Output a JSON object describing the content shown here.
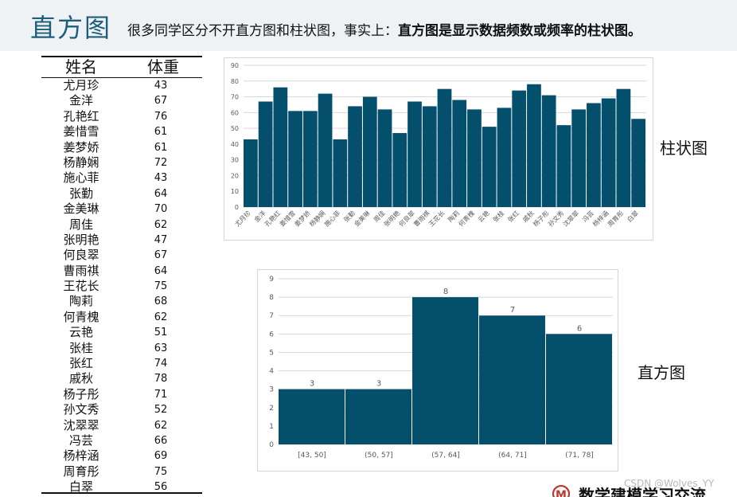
{
  "header": {
    "title": "直方图",
    "subtitle_plain": "很多同学区分不开直方图和柱状图，事实上：",
    "subtitle_bold": "直方图是显示数据频数或频率的柱状图。"
  },
  "table": {
    "headers": [
      "姓名",
      "体重"
    ],
    "rows": [
      {
        "name": "尤月珍",
        "weight": "43"
      },
      {
        "name": "金洋",
        "weight": "67"
      },
      {
        "name": "孔艳红",
        "weight": "76"
      },
      {
        "name": "姜惜雪",
        "weight": "61"
      },
      {
        "name": "姜梦娇",
        "weight": "61"
      },
      {
        "name": "杨静娴",
        "weight": "72"
      },
      {
        "name": "施心菲",
        "weight": "43"
      },
      {
        "name": "张勤",
        "weight": "64"
      },
      {
        "name": "金美琳",
        "weight": "70"
      },
      {
        "name": "周佳",
        "weight": "62"
      },
      {
        "name": "张明艳",
        "weight": "47"
      },
      {
        "name": "何良翠",
        "weight": "67"
      },
      {
        "name": "曹雨祺",
        "weight": "64"
      },
      {
        "name": "王花长",
        "weight": "75"
      },
      {
        "name": "陶莉",
        "weight": "68"
      },
      {
        "name": "何青槐",
        "weight": "62"
      },
      {
        "name": "云艳",
        "weight": "51"
      },
      {
        "name": "张桂",
        "weight": "63"
      },
      {
        "name": "张红",
        "weight": "74"
      },
      {
        "name": "戚秋",
        "weight": "78"
      },
      {
        "name": "杨子彤",
        "weight": "71"
      },
      {
        "name": "孙文秀",
        "weight": "52"
      },
      {
        "name": "沈翠翠",
        "weight": "62"
      },
      {
        "name": "冯芸",
        "weight": "66"
      },
      {
        "name": "杨梓涵",
        "weight": "69"
      },
      {
        "name": "周育彤",
        "weight": "75"
      },
      {
        "name": "白翠",
        "weight": "56"
      }
    ]
  },
  "labels": {
    "bar_chart": "柱状图",
    "histogram": "直方图"
  },
  "colors": {
    "bar_fill": "#044f6c",
    "title_color": "#1d5f7a",
    "header_bg": "#eef2f4",
    "grid": "#d9d9d9",
    "tick_text": "#595959"
  },
  "chart_data": [
    {
      "type": "bar",
      "categories": [
        "尤月珍",
        "金洋",
        "孔艳红",
        "姜惜雪",
        "姜梦娇",
        "杨静娴",
        "施心菲",
        "张勤",
        "金美琳",
        "周佳",
        "张明艳",
        "何良翠",
        "曹雨祺",
        "王花长",
        "陶莉",
        "何青槐",
        "云艳",
        "张桂",
        "张红",
        "戚秋",
        "杨子彤",
        "孙文秀",
        "沈翠翠",
        "冯芸",
        "杨梓涵",
        "周育彤",
        "白翠"
      ],
      "values": [
        43,
        67,
        76,
        61,
        61,
        72,
        43,
        64,
        70,
        62,
        47,
        67,
        64,
        75,
        68,
        62,
        51,
        63,
        74,
        78,
        71,
        52,
        62,
        66,
        69,
        75,
        56
      ],
      "yticks": [
        0,
        10,
        20,
        30,
        40,
        50,
        60,
        70,
        80,
        90
      ],
      "ylim": [
        0,
        90
      ],
      "grid": true,
      "title": "",
      "xlabel": "",
      "ylabel": ""
    },
    {
      "type": "bar",
      "categories": [
        "[43, 50]",
        "(50, 57]",
        "(57, 64]",
        "(64, 71]",
        "(71, 78]"
      ],
      "values": [
        3,
        3,
        8,
        7,
        6
      ],
      "data_labels": [
        "3",
        "3",
        "8",
        "7",
        "6"
      ],
      "yticks": [
        0,
        1,
        2,
        3,
        4,
        5,
        6,
        7,
        8,
        9
      ],
      "ylim": [
        0,
        9
      ],
      "grid": true,
      "title": "",
      "xlabel": "",
      "ylabel": ""
    }
  ],
  "footer": {
    "watermark": "CSDN @Wolves_YY",
    "logo_text": "数学建模学习交流",
    "logo_letter": "M"
  }
}
